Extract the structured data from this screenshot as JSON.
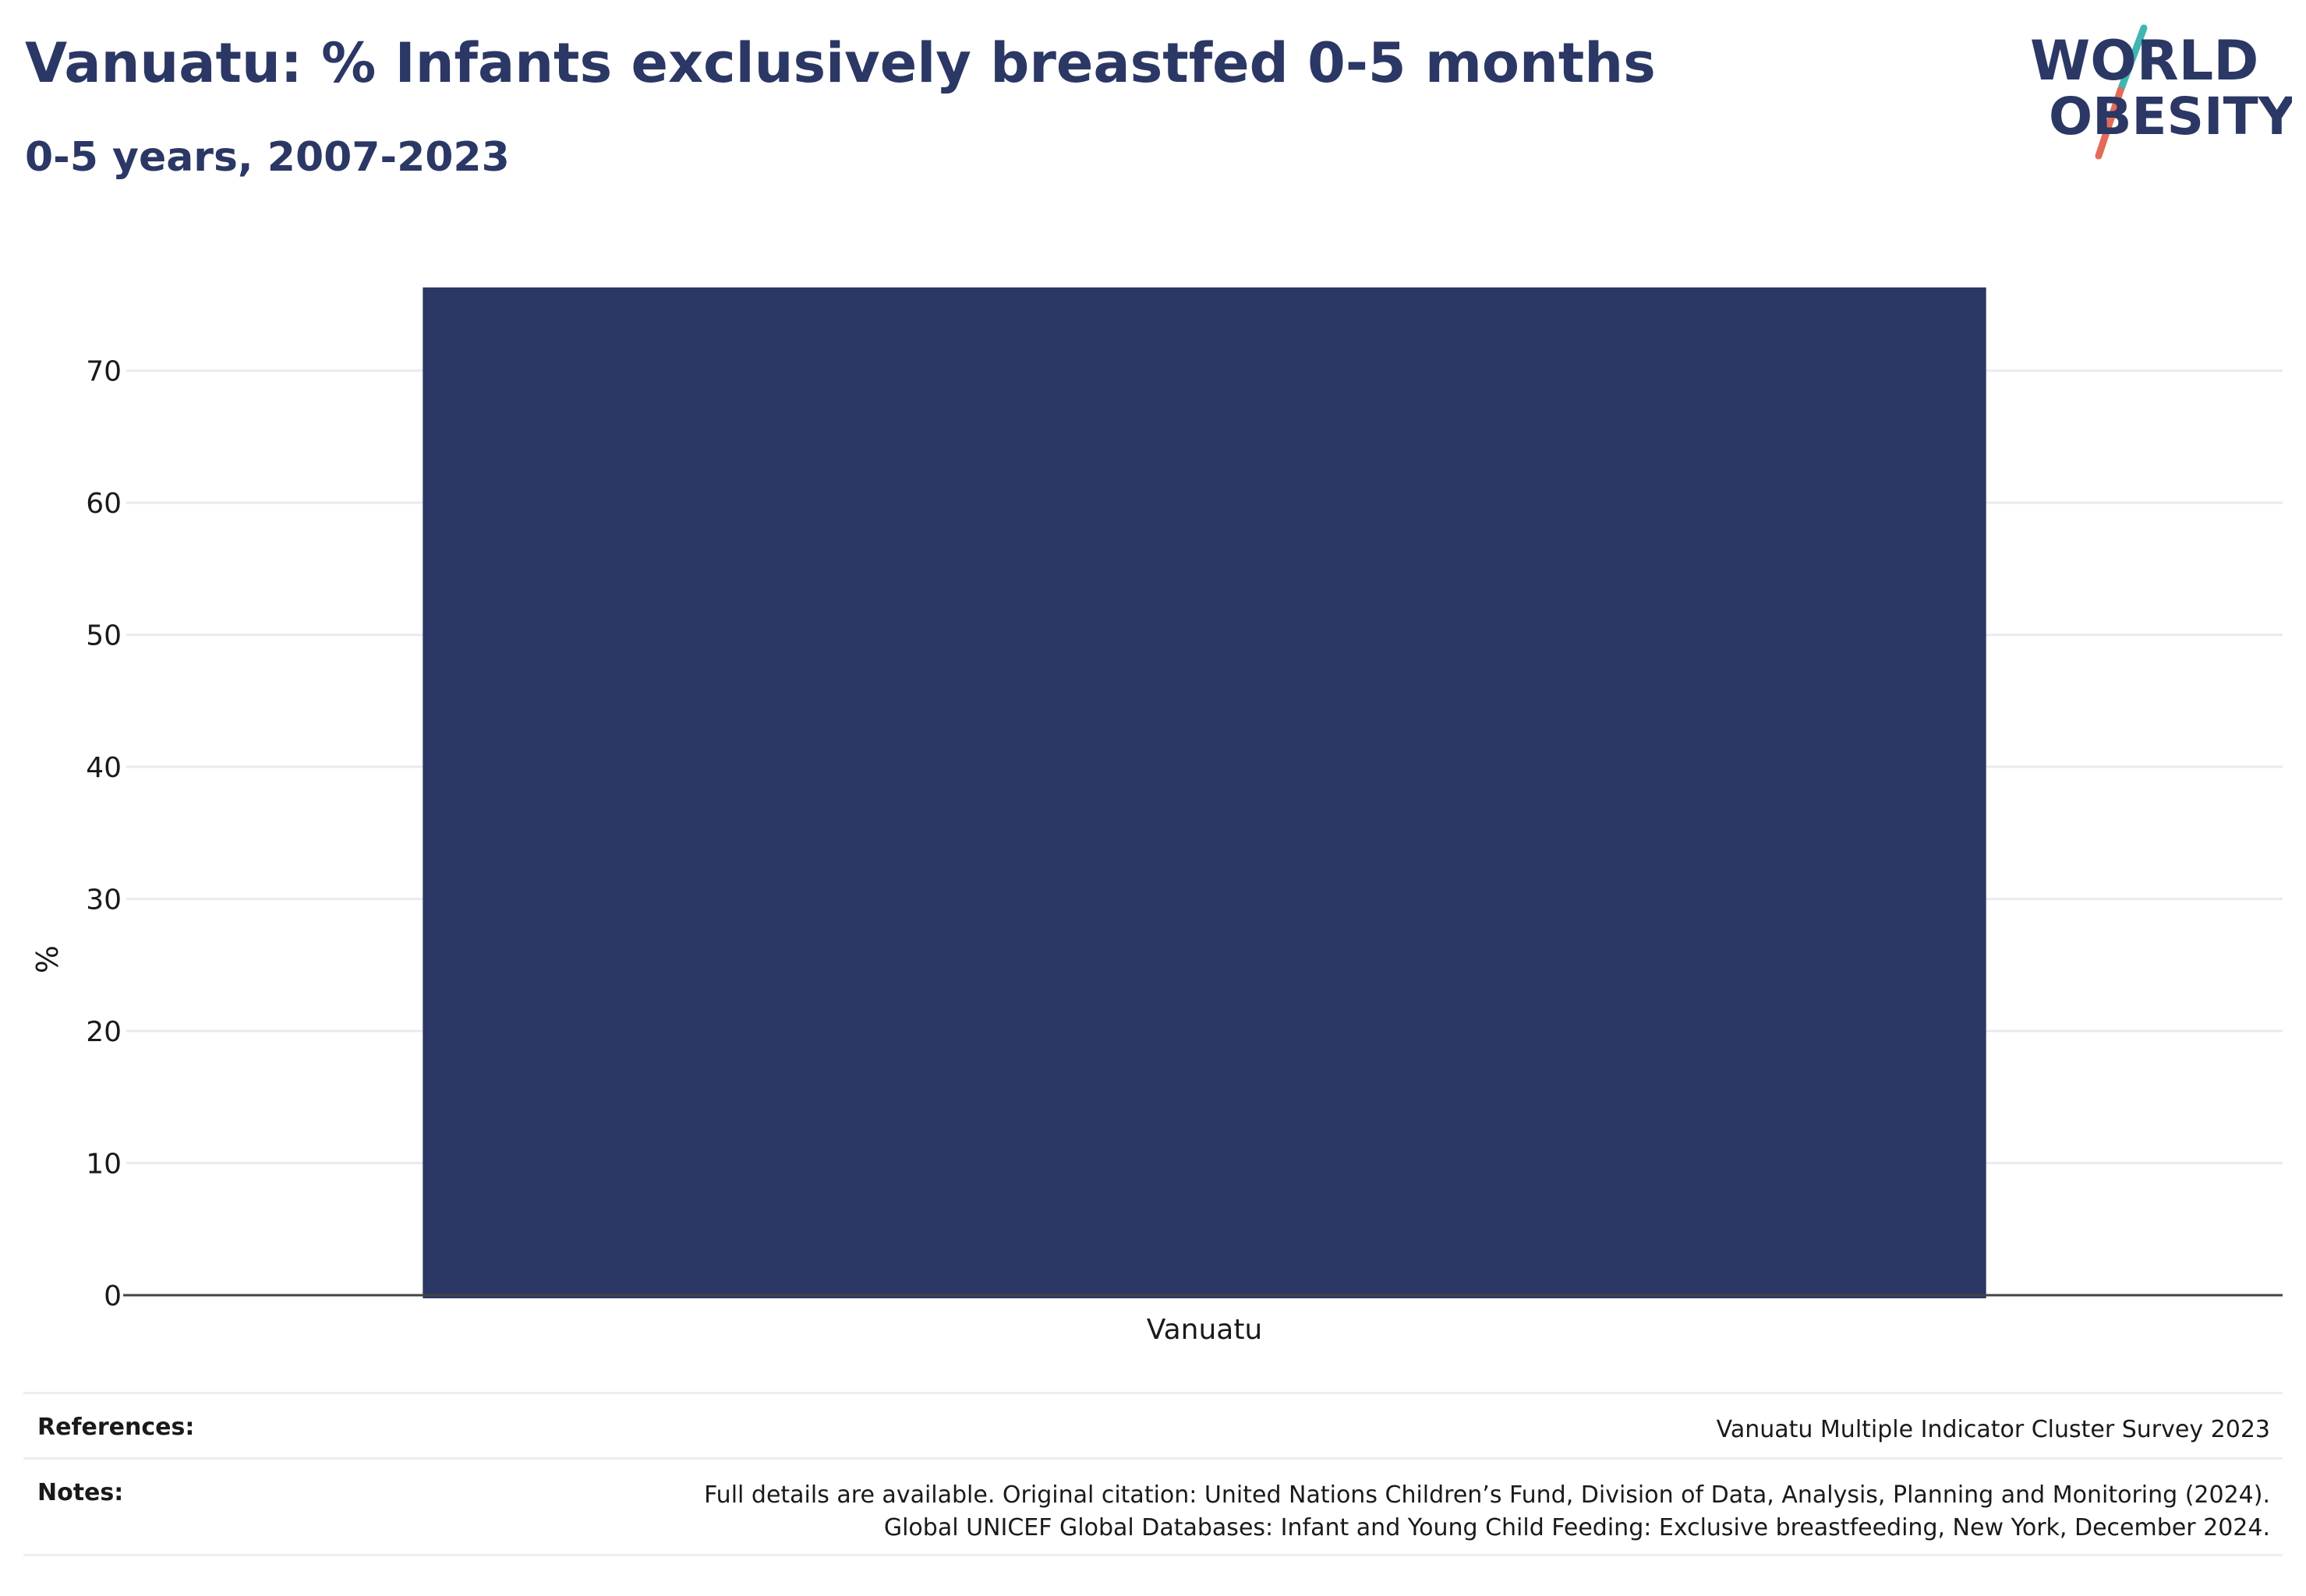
{
  "header": {
    "title": "Vanuatu: % Infants exclusively breastfed 0-5 months",
    "subtitle": "0-5 years, 2007-2023"
  },
  "logo": {
    "line1": "WORLD",
    "line2": "OBESITY",
    "text_color": "#2b3764",
    "slash_color_top": "#3fb6b1",
    "slash_color_bottom": "#e46a5a"
  },
  "chart_data": {
    "type": "bar",
    "categories": [
      "Vanuatu"
    ],
    "values": [
      76.3
    ],
    "title": "Vanuatu: % Infants exclusively breastfed 0-5 months",
    "subtitle": "0-5 years, 2007-2023",
    "xlabel": "",
    "ylabel": "%",
    "ylim": [
      0,
      78
    ],
    "yticks": [
      0,
      10,
      20,
      30,
      40,
      50,
      60,
      70
    ],
    "grid": true,
    "legend": "none",
    "bar_color": "#2b3764"
  },
  "footer": {
    "references_label": "References:",
    "references_value": "Vanuatu Multiple Indicator Cluster Survey 2023",
    "notes_label": "Notes:",
    "notes_line1": "Full details are available. Original citation: United Nations Children’s Fund, Division of Data, Analysis, Planning and Monitoring (2024).",
    "notes_line2": "Global UNICEF Global Databases: Infant and Young Child Feeding: Exclusive breastfeeding, New York, December 2024."
  }
}
